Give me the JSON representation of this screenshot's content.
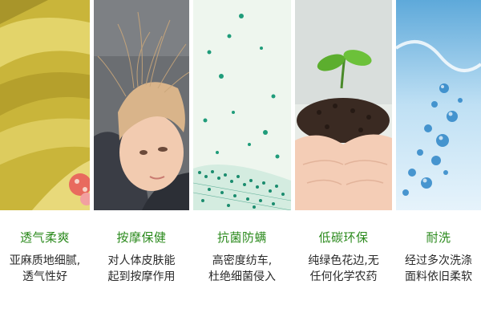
{
  "features": [
    {
      "icon": "linen-fabric-photo",
      "title": "透气柔爽",
      "lines": [
        "亚麻质地细腻,",
        "透气性好"
      ]
    },
    {
      "icon": "child-photo",
      "title": "按摩保健",
      "lines": [
        "对人体皮肤能",
        "起到按摩作用"
      ]
    },
    {
      "icon": "mite-microscope-photo",
      "title": "抗菌防螨",
      "lines": [
        "高密度纺车,",
        "杜绝细菌侵入"
      ]
    },
    {
      "icon": "sprout-in-hands-photo",
      "title": "低碳环保",
      "lines": [
        "纯绿色花边,无",
        "任何化学农药"
      ]
    },
    {
      "icon": "water-splash-photo",
      "title": "耐洗",
      "lines": [
        "经过多次洗涤",
        "面料依旧柔软"
      ]
    }
  ],
  "colors": {
    "title": "#2b8a1d",
    "text": "#2a2a2a",
    "background": "#ffffff"
  }
}
